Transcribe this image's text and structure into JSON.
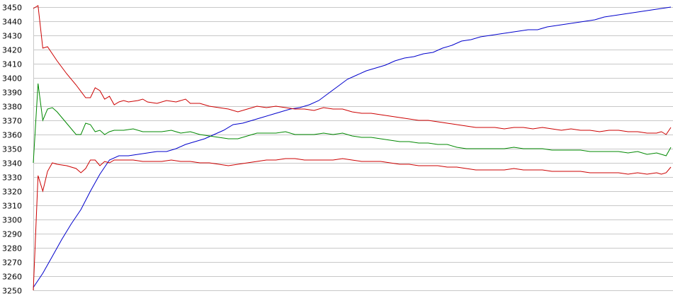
{
  "chart_data": {
    "type": "line",
    "title": "",
    "xlabel": "",
    "ylabel": "",
    "ylim": [
      3250,
      3450
    ],
    "yticks": [
      3450,
      3440,
      3430,
      3420,
      3410,
      3400,
      3390,
      3380,
      3370,
      3360,
      3350,
      3340,
      3330,
      3320,
      3310,
      3300,
      3290,
      3280,
      3270,
      3260,
      3250
    ],
    "x_count": 180,
    "grid": "horizontal",
    "legend": "none",
    "series": [
      {
        "color": "#0000cc",
        "points": [
          [
            0,
            3252
          ],
          [
            4,
            3262
          ],
          [
            8,
            3274
          ],
          [
            12,
            3286
          ],
          [
            16,
            3297
          ],
          [
            20,
            3307
          ],
          [
            24,
            3320
          ],
          [
            28,
            3332
          ],
          [
            32,
            3342
          ],
          [
            36,
            3345
          ],
          [
            40,
            3345
          ],
          [
            44,
            3346
          ],
          [
            48,
            3347
          ],
          [
            52,
            3348
          ],
          [
            56,
            3348
          ],
          [
            60,
            3350
          ],
          [
            64,
            3353
          ],
          [
            68,
            3355
          ],
          [
            72,
            3357
          ],
          [
            76,
            3360
          ],
          [
            80,
            3363
          ],
          [
            84,
            3367
          ],
          [
            88,
            3368
          ],
          [
            92,
            3370
          ],
          [
            96,
            3372
          ],
          [
            100,
            3374
          ],
          [
            104,
            3376
          ],
          [
            108,
            3378
          ],
          [
            112,
            3379
          ],
          [
            116,
            3381
          ],
          [
            120,
            3384
          ],
          [
            124,
            3389
          ],
          [
            128,
            3394
          ],
          [
            132,
            3399
          ],
          [
            136,
            3402
          ],
          [
            140,
            3405
          ],
          [
            144,
            3407
          ],
          [
            148,
            3409
          ],
          [
            152,
            3412
          ],
          [
            156,
            3414
          ],
          [
            160,
            3415
          ],
          [
            164,
            3417
          ],
          [
            168,
            3418
          ],
          [
            172,
            3421
          ],
          [
            176,
            3423
          ],
          [
            180,
            3426
          ],
          [
            184,
            3427
          ],
          [
            188,
            3429
          ],
          [
            192,
            3430
          ],
          [
            196,
            3431
          ],
          [
            200,
            3432
          ],
          [
            204,
            3433
          ],
          [
            208,
            3434
          ],
          [
            212,
            3434
          ],
          [
            216,
            3436
          ],
          [
            220,
            3437
          ],
          [
            224,
            3438
          ],
          [
            228,
            3439
          ],
          [
            232,
            3440
          ],
          [
            236,
            3441
          ],
          [
            240,
            3443
          ],
          [
            244,
            3444
          ],
          [
            248,
            3445
          ],
          [
            252,
            3446
          ],
          [
            256,
            3447
          ],
          [
            260,
            3448
          ],
          [
            264,
            3449
          ],
          [
            268,
            3450
          ]
        ]
      },
      {
        "color": "#cc0000",
        "points": [
          [
            0,
            3449
          ],
          [
            2,
            3451
          ],
          [
            4,
            3421
          ],
          [
            6,
            3422
          ],
          [
            10,
            3412
          ],
          [
            14,
            3403
          ],
          [
            18,
            3395
          ],
          [
            22,
            3386
          ],
          [
            24,
            3386
          ],
          [
            26,
            3393
          ],
          [
            28,
            3391
          ],
          [
            30,
            3385
          ],
          [
            32,
            3387
          ],
          [
            34,
            3381
          ],
          [
            36,
            3383
          ],
          [
            38,
            3384
          ],
          [
            40,
            3383
          ],
          [
            44,
            3384
          ],
          [
            46,
            3385
          ],
          [
            48,
            3383
          ],
          [
            52,
            3382
          ],
          [
            56,
            3384
          ],
          [
            60,
            3383
          ],
          [
            64,
            3385
          ],
          [
            66,
            3382
          ],
          [
            70,
            3382
          ],
          [
            74,
            3380
          ],
          [
            78,
            3379
          ],
          [
            82,
            3378
          ],
          [
            86,
            3376
          ],
          [
            90,
            3378
          ],
          [
            94,
            3380
          ],
          [
            98,
            3379
          ],
          [
            102,
            3380
          ],
          [
            106,
            3379
          ],
          [
            110,
            3378
          ],
          [
            114,
            3378
          ],
          [
            118,
            3377
          ],
          [
            122,
            3379
          ],
          [
            126,
            3378
          ],
          [
            130,
            3378
          ],
          [
            134,
            3376
          ],
          [
            138,
            3375
          ],
          [
            142,
            3375
          ],
          [
            146,
            3374
          ],
          [
            150,
            3373
          ],
          [
            154,
            3372
          ],
          [
            158,
            3371
          ],
          [
            162,
            3370
          ],
          [
            166,
            3370
          ],
          [
            170,
            3369
          ],
          [
            174,
            3368
          ],
          [
            178,
            3367
          ],
          [
            182,
            3366
          ],
          [
            186,
            3365
          ],
          [
            190,
            3365
          ],
          [
            194,
            3365
          ],
          [
            198,
            3364
          ],
          [
            202,
            3365
          ],
          [
            206,
            3365
          ],
          [
            210,
            3364
          ],
          [
            214,
            3365
          ],
          [
            218,
            3364
          ],
          [
            222,
            3363
          ],
          [
            226,
            3364
          ],
          [
            230,
            3363
          ],
          [
            234,
            3363
          ],
          [
            238,
            3362
          ],
          [
            242,
            3363
          ],
          [
            246,
            3363
          ],
          [
            250,
            3362
          ],
          [
            254,
            3362
          ],
          [
            258,
            3361
          ],
          [
            262,
            3361
          ],
          [
            264,
            3362
          ],
          [
            266,
            3360
          ],
          [
            268,
            3365
          ]
        ]
      },
      {
        "color": "#008800",
        "points": [
          [
            0,
            3340
          ],
          [
            2,
            3396
          ],
          [
            4,
            3370
          ],
          [
            6,
            3378
          ],
          [
            8,
            3379
          ],
          [
            10,
            3376
          ],
          [
            14,
            3368
          ],
          [
            18,
            3360
          ],
          [
            20,
            3360
          ],
          [
            22,
            3368
          ],
          [
            24,
            3367
          ],
          [
            26,
            3362
          ],
          [
            28,
            3363
          ],
          [
            30,
            3360
          ],
          [
            32,
            3362
          ],
          [
            34,
            3363
          ],
          [
            38,
            3363
          ],
          [
            42,
            3364
          ],
          [
            46,
            3362
          ],
          [
            50,
            3362
          ],
          [
            54,
            3362
          ],
          [
            58,
            3363
          ],
          [
            62,
            3361
          ],
          [
            66,
            3362
          ],
          [
            70,
            3360
          ],
          [
            74,
            3359
          ],
          [
            78,
            3358
          ],
          [
            82,
            3357
          ],
          [
            86,
            3357
          ],
          [
            90,
            3359
          ],
          [
            94,
            3361
          ],
          [
            98,
            3361
          ],
          [
            102,
            3361
          ],
          [
            106,
            3362
          ],
          [
            110,
            3360
          ],
          [
            114,
            3360
          ],
          [
            118,
            3360
          ],
          [
            122,
            3361
          ],
          [
            126,
            3360
          ],
          [
            130,
            3361
          ],
          [
            134,
            3359
          ],
          [
            138,
            3358
          ],
          [
            142,
            3358
          ],
          [
            146,
            3357
          ],
          [
            150,
            3356
          ],
          [
            154,
            3355
          ],
          [
            158,
            3355
          ],
          [
            162,
            3354
          ],
          [
            166,
            3354
          ],
          [
            170,
            3353
          ],
          [
            174,
            3353
          ],
          [
            178,
            3351
          ],
          [
            182,
            3350
          ],
          [
            186,
            3350
          ],
          [
            190,
            3350
          ],
          [
            194,
            3350
          ],
          [
            198,
            3350
          ],
          [
            202,
            3351
          ],
          [
            206,
            3350
          ],
          [
            210,
            3350
          ],
          [
            214,
            3350
          ],
          [
            218,
            3349
          ],
          [
            222,
            3349
          ],
          [
            226,
            3349
          ],
          [
            230,
            3349
          ],
          [
            234,
            3348
          ],
          [
            238,
            3348
          ],
          [
            242,
            3348
          ],
          [
            246,
            3348
          ],
          [
            250,
            3347
          ],
          [
            254,
            3348
          ],
          [
            258,
            3346
          ],
          [
            262,
            3347
          ],
          [
            264,
            3346
          ],
          [
            266,
            3345
          ],
          [
            268,
            3351
          ]
        ]
      },
      {
        "color": "#cc0000",
        "points": [
          [
            0,
            3250
          ],
          [
            2,
            3331
          ],
          [
            4,
            3320
          ],
          [
            6,
            3334
          ],
          [
            8,
            3340
          ],
          [
            10,
            3339
          ],
          [
            14,
            3338
          ],
          [
            18,
            3336
          ],
          [
            20,
            3333
          ],
          [
            22,
            3336
          ],
          [
            24,
            3342
          ],
          [
            26,
            3342
          ],
          [
            28,
            3338
          ],
          [
            30,
            3341
          ],
          [
            32,
            3340
          ],
          [
            34,
            3342
          ],
          [
            38,
            3342
          ],
          [
            42,
            3342
          ],
          [
            46,
            3341
          ],
          [
            50,
            3341
          ],
          [
            54,
            3341
          ],
          [
            58,
            3342
          ],
          [
            62,
            3341
          ],
          [
            66,
            3341
          ],
          [
            70,
            3340
          ],
          [
            74,
            3340
          ],
          [
            78,
            3339
          ],
          [
            82,
            3338
          ],
          [
            86,
            3339
          ],
          [
            90,
            3340
          ],
          [
            94,
            3341
          ],
          [
            98,
            3342
          ],
          [
            102,
            3342
          ],
          [
            106,
            3343
          ],
          [
            110,
            3343
          ],
          [
            114,
            3342
          ],
          [
            118,
            3342
          ],
          [
            122,
            3342
          ],
          [
            126,
            3342
          ],
          [
            130,
            3343
          ],
          [
            134,
            3342
          ],
          [
            138,
            3341
          ],
          [
            142,
            3341
          ],
          [
            146,
            3341
          ],
          [
            150,
            3340
          ],
          [
            154,
            3339
          ],
          [
            158,
            3339
          ],
          [
            162,
            3338
          ],
          [
            166,
            3338
          ],
          [
            170,
            3338
          ],
          [
            174,
            3337
          ],
          [
            178,
            3337
          ],
          [
            182,
            3336
          ],
          [
            186,
            3335
          ],
          [
            190,
            3335
          ],
          [
            194,
            3335
          ],
          [
            198,
            3335
          ],
          [
            202,
            3336
          ],
          [
            206,
            3335
          ],
          [
            210,
            3335
          ],
          [
            214,
            3335
          ],
          [
            218,
            3334
          ],
          [
            222,
            3334
          ],
          [
            226,
            3334
          ],
          [
            230,
            3334
          ],
          [
            234,
            3333
          ],
          [
            238,
            3333
          ],
          [
            242,
            3333
          ],
          [
            246,
            3333
          ],
          [
            250,
            3332
          ],
          [
            254,
            3333
          ],
          [
            258,
            3332
          ],
          [
            262,
            3333
          ],
          [
            264,
            3332
          ],
          [
            266,
            3333
          ],
          [
            268,
            3337
          ]
        ]
      }
    ]
  }
}
